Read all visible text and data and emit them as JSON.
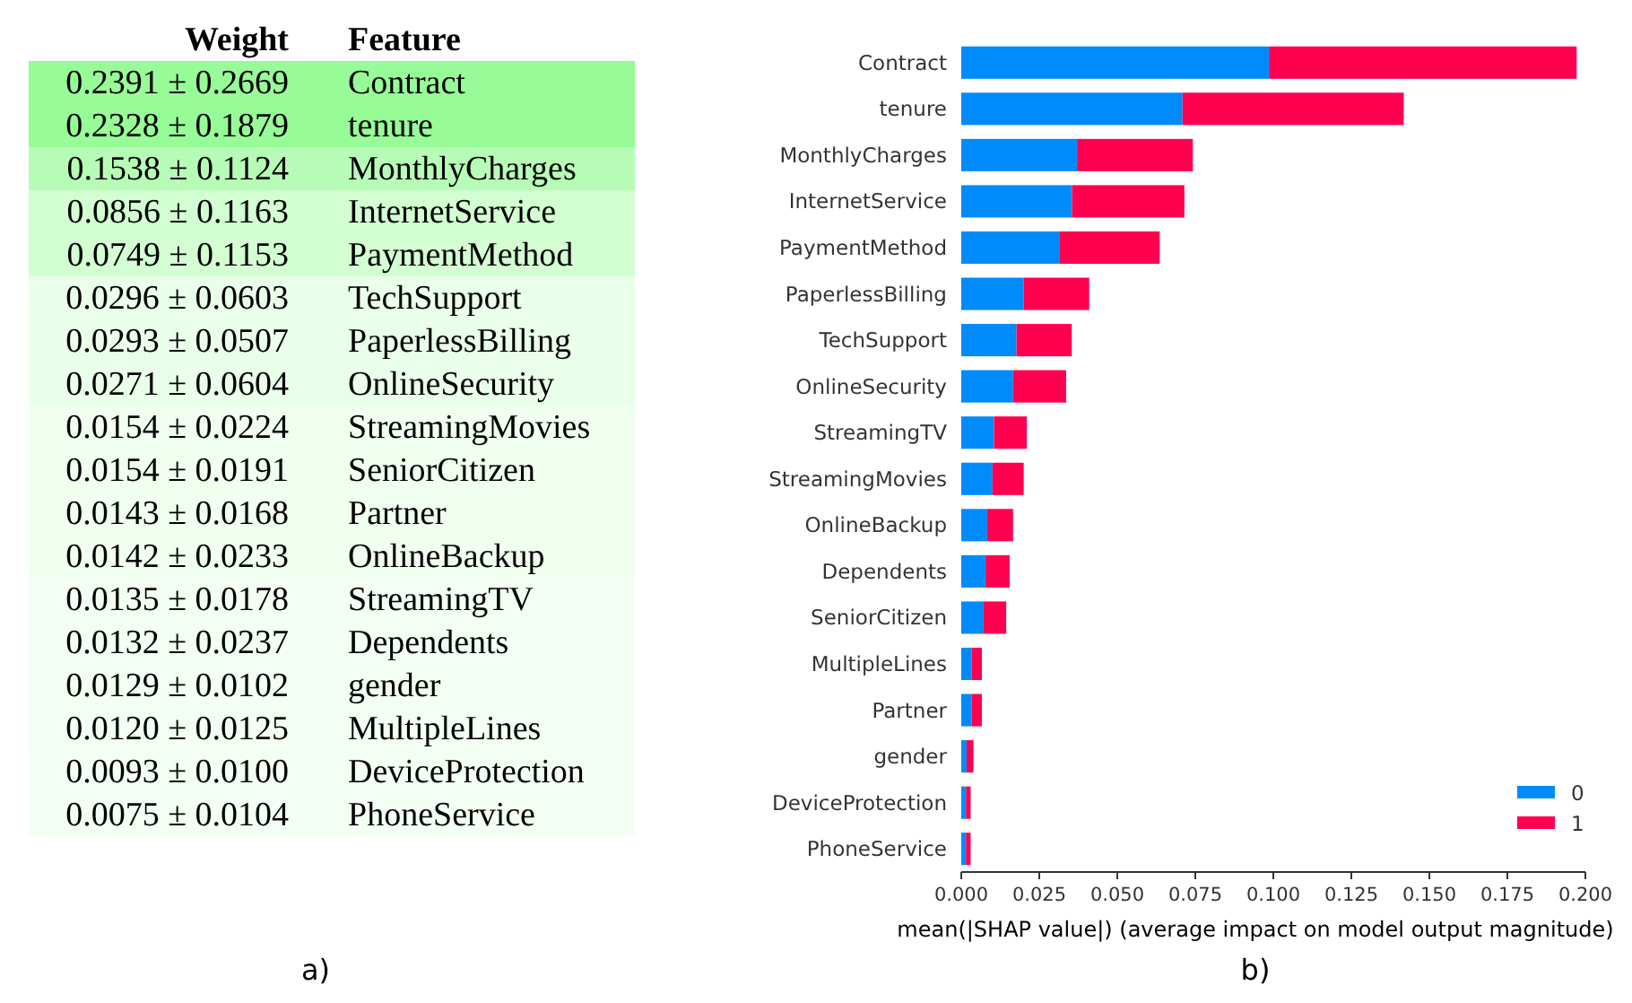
{
  "chart_data": [
    {
      "type": "other",
      "xlabel": "Weight",
      "ylabel": "Feature",
      "categories": [
        "Contract",
        "tenure",
        "MonthlyCharges",
        "InternetService",
        "PaymentMethod",
        "TechSupport",
        "PaperlessBilling",
        "OnlineSecurity",
        "StreamingMovies",
        "SeniorCitizen",
        "Partner",
        "OnlineBackup",
        "StreamingTV",
        "Dependents",
        "gender",
        "MultipleLines",
        "DeviceProtection",
        "PhoneService"
      ],
      "value_labels": [
        "0.2391 ± 0.2669",
        "0.2328 ± 0.1879",
        "0.1538 ± 0.1124",
        "0.0856 ± 0.1163",
        "0.0749 ± 0.1153",
        "0.0296 ± 0.0603",
        "0.0293 ± 0.0507",
        "0.0271 ± 0.0604",
        "0.0154 ± 0.0224",
        "0.0154 ± 0.0191",
        "0.0143 ± 0.0168",
        "0.0142 ± 0.0233",
        "0.0135 ± 0.0178",
        "0.0132 ± 0.0237",
        "0.0129 ± 0.0102",
        "0.0120 ± 0.0125",
        "0.0093 ± 0.0100",
        "0.0075 ± 0.0104"
      ],
      "annotations": [
        "a)"
      ]
    },
    {
      "type": "bar",
      "orientation": "horizontal",
      "stacked": true,
      "categories": [
        "Contract",
        "tenure",
        "MonthlyCharges",
        "InternetService",
        "PaymentMethod",
        "PaperlessBilling",
        "TechSupport",
        "OnlineSecurity",
        "StreamingTV",
        "StreamingMovies",
        "OnlineBackup",
        "Dependents",
        "SeniorCitizen",
        "MultipleLines",
        "Partner",
        "gender",
        "DeviceProtection",
        "PhoneService"
      ],
      "series": [
        {
          "name": "0",
          "color": "#008bfb",
          "values": [
            0.0986,
            0.0709,
            0.0371,
            0.0355,
            0.0316,
            0.02,
            0.0177,
            0.0166,
            0.0105,
            0.01,
            0.0083,
            0.0078,
            0.0072,
            0.0033,
            0.0033,
            0.0017,
            0.0015,
            0.0015
          ]
        },
        {
          "name": "1",
          "color": "#ff0051",
          "values": [
            0.0986,
            0.0709,
            0.0371,
            0.036,
            0.032,
            0.021,
            0.0177,
            0.017,
            0.0105,
            0.01,
            0.0083,
            0.0077,
            0.0072,
            0.0033,
            0.0033,
            0.0022,
            0.0015,
            0.0015
          ]
        }
      ],
      "xlim": [
        0,
        0.2
      ],
      "xticks": [
        {
          "value": 0,
          "label": "0.000"
        },
        {
          "value": 0.025,
          "label": "0.025"
        },
        {
          "value": 0.05,
          "label": "0.050"
        },
        {
          "value": 0.075,
          "label": "0.075"
        },
        {
          "value": 0.1,
          "label": "0.100"
        },
        {
          "value": 0.125,
          "label": "0.125"
        },
        {
          "value": 0.15,
          "label": "0.150"
        },
        {
          "value": 0.175,
          "label": "0.175"
        },
        {
          "value": 0.2,
          "label": "0.200"
        }
      ],
      "xlabel": "mean(|SHAP value|) (average impact on model output magnitude)",
      "legend": "bottom right",
      "grid": false,
      "annotations": [
        "b)"
      ]
    }
  ]
}
